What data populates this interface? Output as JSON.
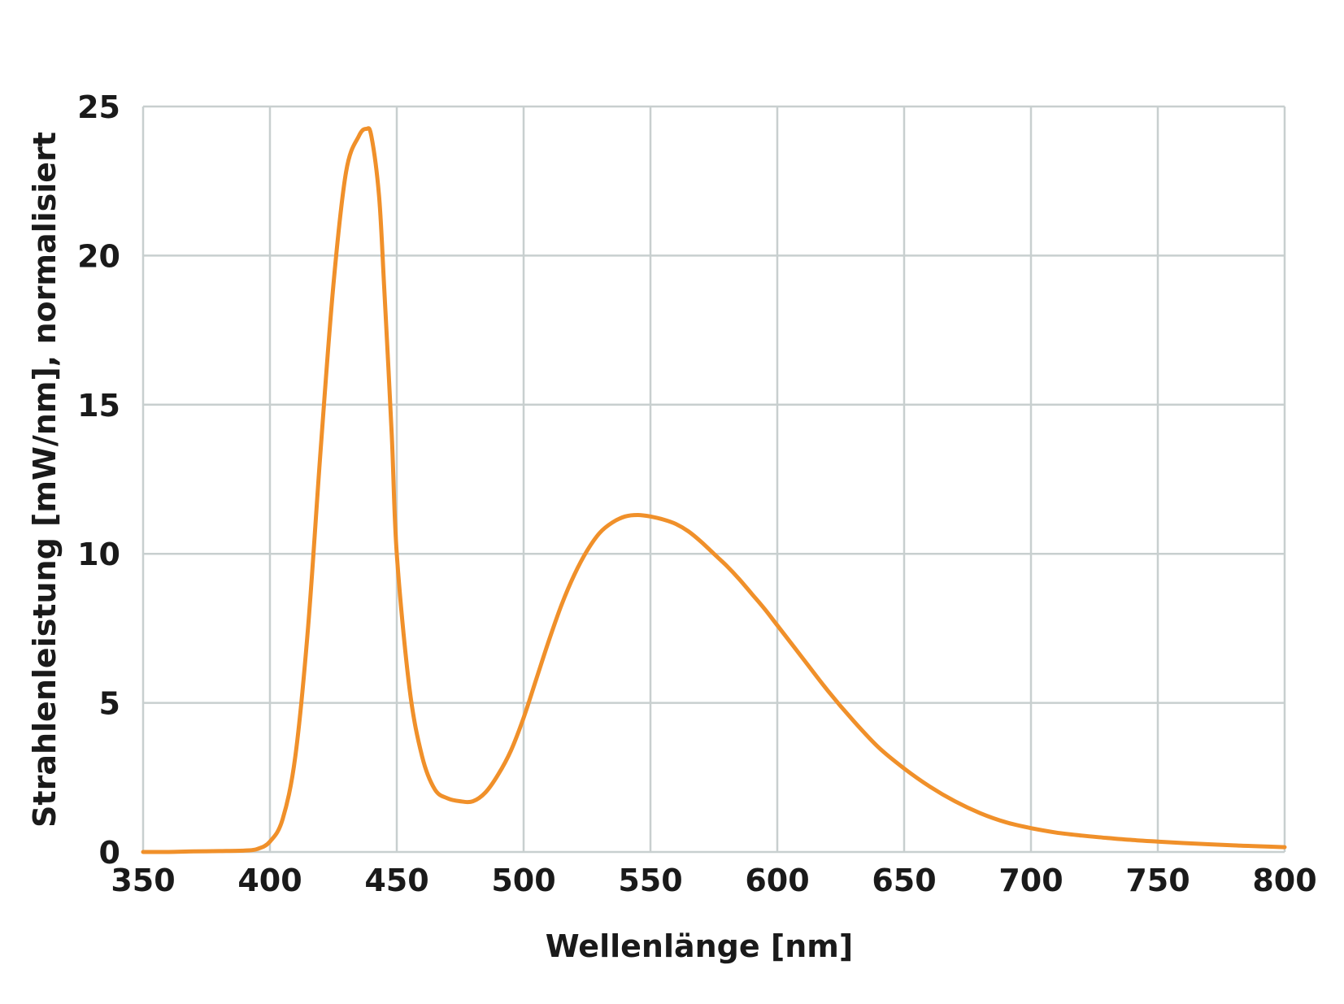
{
  "chart_data": {
    "type": "line",
    "title": "",
    "xlabel": "Wellenlänge [nm]",
    "ylabel": "Strahlenleistung [mW/nm], normalisiert",
    "xlim": [
      350,
      800
    ],
    "ylim": [
      0,
      25
    ],
    "xticks": [
      "350",
      "400",
      "450",
      "500",
      "550",
      "600",
      "650",
      "700",
      "750",
      "800"
    ],
    "yticks": [
      "0",
      "5",
      "10",
      "15",
      "20",
      "25"
    ],
    "grid": true,
    "line_color": "#f0902a",
    "series": [
      {
        "x": [
          350,
          360,
          370,
          380,
          390,
          395,
          400,
          405,
          410,
          415,
          420,
          425,
          430,
          435,
          438,
          440,
          443,
          445,
          448,
          450,
          455,
          460,
          465,
          470,
          475,
          480,
          485,
          490,
          495,
          500,
          505,
          510,
          515,
          520,
          525,
          530,
          535,
          540,
          545,
          550,
          555,
          560,
          565,
          570,
          575,
          580,
          585,
          590,
          595,
          600,
          610,
          620,
          630,
          640,
          650,
          660,
          670,
          680,
          690,
          700,
          710,
          720,
          730,
          740,
          750,
          760,
          770,
          780,
          790,
          800
        ],
        "y": [
          0.0,
          0.0,
          0.02,
          0.03,
          0.05,
          0.1,
          0.35,
          1.1,
          3.2,
          7.5,
          13.5,
          19.0,
          22.8,
          24.0,
          24.25,
          24.0,
          22.0,
          19.0,
          14.0,
          10.0,
          5.5,
          3.2,
          2.1,
          1.8,
          1.7,
          1.7,
          2.0,
          2.6,
          3.4,
          4.5,
          5.8,
          7.1,
          8.3,
          9.3,
          10.1,
          10.7,
          11.05,
          11.25,
          11.3,
          11.25,
          11.15,
          11.0,
          10.75,
          10.4,
          10.0,
          9.6,
          9.15,
          8.65,
          8.15,
          7.6,
          6.5,
          5.4,
          4.4,
          3.5,
          2.8,
          2.2,
          1.7,
          1.3,
          1.0,
          0.8,
          0.65,
          0.55,
          0.47,
          0.4,
          0.35,
          0.3,
          0.26,
          0.22,
          0.19,
          0.16
        ]
      }
    ]
  }
}
